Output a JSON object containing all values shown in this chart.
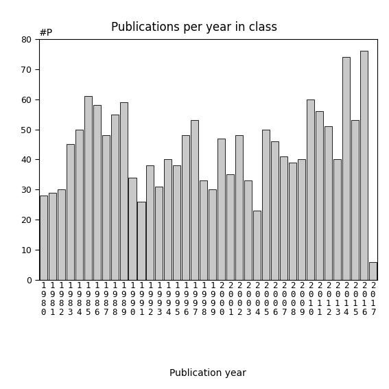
{
  "title": "Publications per year in class",
  "xlabel": "Publication year",
  "ylabel": "#P",
  "years": [
    1980,
    1981,
    1982,
    1983,
    1984,
    1985,
    1986,
    1987,
    1988,
    1989,
    1990,
    1991,
    1992,
    1993,
    1994,
    1995,
    1996,
    1997,
    1998,
    1999,
    2000,
    2001,
    2002,
    2003,
    2004,
    2005,
    2006,
    2007,
    2008,
    2009,
    2010,
    2011,
    2012,
    2013,
    2014,
    2015,
    2016,
    2017
  ],
  "values": [
    28,
    29,
    30,
    45,
    50,
    61,
    58,
    48,
    55,
    59,
    34,
    26,
    38,
    31,
    40,
    38,
    48,
    53,
    33,
    30,
    47,
    35,
    48,
    33,
    23,
    50,
    46,
    41,
    39,
    40,
    60,
    56,
    51,
    40,
    74,
    53,
    76,
    6
  ],
  "bar_color": "#c8c8c8",
  "bar_edge_color": "#000000",
  "ylim": [
    0,
    80
  ],
  "yticks": [
    0,
    10,
    20,
    30,
    40,
    50,
    60,
    70,
    80
  ],
  "background_color": "#ffffff",
  "title_fontsize": 12,
  "xlabel_fontsize": 10,
  "tick_fontsize": 9
}
